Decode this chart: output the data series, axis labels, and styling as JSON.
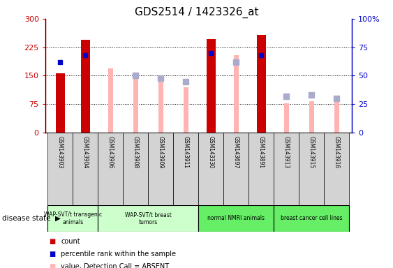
{
  "title": "GDS2514 / 1423326_at",
  "samples": [
    "GSM143903",
    "GSM143904",
    "GSM143906",
    "GSM143908",
    "GSM143909",
    "GSM143911",
    "GSM143330",
    "GSM143697",
    "GSM143891",
    "GSM143913",
    "GSM143915",
    "GSM143916"
  ],
  "count_values": [
    157,
    245,
    null,
    null,
    null,
    null,
    247,
    null,
    257,
    null,
    null,
    null
  ],
  "count_color": "#cc0000",
  "absent_value_values": [
    null,
    170,
    170,
    144,
    147,
    120,
    null,
    205,
    null,
    78,
    82,
    83
  ],
  "absent_value_color": "#ffb3b3",
  "percentile_rank_values": [
    62,
    68,
    null,
    null,
    null,
    null,
    70,
    null,
    68,
    null,
    null,
    null
  ],
  "percentile_rank_color": "#0000cc",
  "absent_rank_values": [
    null,
    null,
    null,
    50,
    48,
    45,
    null,
    62,
    null,
    32,
    33,
    30
  ],
  "absent_rank_color": "#aaaacc",
  "ylim_left": [
    0,
    300
  ],
  "ylim_right": [
    0,
    100
  ],
  "yticks_left": [
    0,
    75,
    150,
    225,
    300
  ],
  "yticks_right": [
    0,
    25,
    50,
    75,
    100
  ],
  "ytick_labels_left": [
    "0",
    "75",
    "150",
    "225",
    "300"
  ],
  "ytick_labels_right": [
    "0",
    "25",
    "50",
    "75",
    "100%"
  ],
  "groups": [
    {
      "label": "WAP-SVT/t transgenic\nanimals",
      "start": 0,
      "end": 2,
      "color": "#ccffcc"
    },
    {
      "label": "WAP-SVT/t breast\ntumors",
      "start": 2,
      "end": 6,
      "color": "#ccffcc"
    },
    {
      "label": "normal NMRI animals",
      "start": 6,
      "end": 9,
      "color": "#66ee66"
    },
    {
      "label": "breast cancer cell lines",
      "start": 9,
      "end": 12,
      "color": "#66ee66"
    }
  ],
  "bar_width": 0.35,
  "absent_bar_width": 0.2,
  "rank_marker_size": 6
}
